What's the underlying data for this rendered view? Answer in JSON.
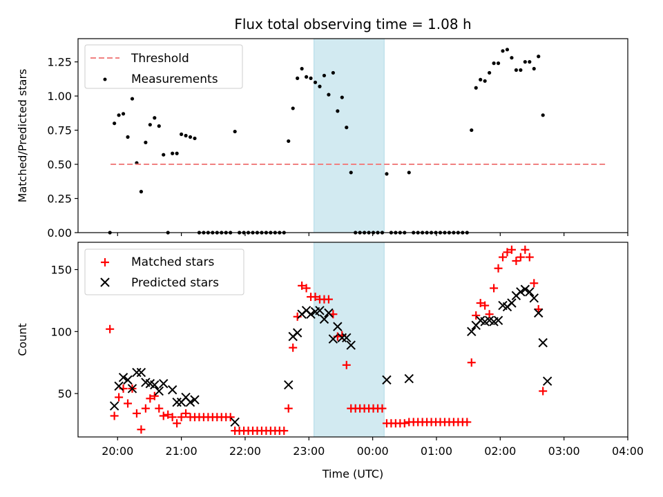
{
  "title": "Flux total observing time = 1.08 h",
  "xlabel": "Time (UTC)",
  "xticks": [
    {
      "h": 0,
      "label": "20:00"
    },
    {
      "h": 1,
      "label": "21:00"
    },
    {
      "h": 2,
      "label": "22:00"
    },
    {
      "h": 3,
      "label": "23:00"
    },
    {
      "h": 4,
      "label": "00:00"
    },
    {
      "h": 5,
      "label": "01:00"
    },
    {
      "h": 6,
      "label": "02:00"
    },
    {
      "h": 7,
      "label": "03:00"
    },
    {
      "h": 8,
      "label": "04:00"
    }
  ],
  "xlim": [
    -0.62,
    8.0
  ],
  "highlight_span": [
    3.08,
    4.18
  ],
  "colors": {
    "threshold": "#f08080",
    "measurements": "#000000",
    "matched": "#ff0000",
    "predicted": "#000000",
    "span": "#add8e6"
  },
  "chart_data": [
    {
      "type": "scatter",
      "ylabel": "Matched/Predicted stars",
      "ylim": [
        0,
        1.42
      ],
      "yticks": [
        {
          "v": 0.0,
          "label": "0.00"
        },
        {
          "v": 0.25,
          "label": "0.25"
        },
        {
          "v": 0.5,
          "label": "0.50"
        },
        {
          "v": 0.75,
          "label": "0.75"
        },
        {
          "v": 1.0,
          "label": "1.00"
        },
        {
          "v": 1.25,
          "label": "1.25"
        }
      ],
      "legend": {
        "placement": "upper-left",
        "threshold_label": "Threshold",
        "measurements_label": "Measurements"
      },
      "threshold": {
        "value": 0.5,
        "x_range": [
          -0.11,
          7.65
        ]
      },
      "series": [
        {
          "name": "Measurements",
          "points": [
            [
              -0.12,
              0.0
            ],
            [
              -0.05,
              0.8
            ],
            [
              0.02,
              0.86
            ],
            [
              0.09,
              0.87
            ],
            [
              0.16,
              0.7
            ],
            [
              0.23,
              0.98
            ],
            [
              0.3,
              0.51
            ],
            [
              0.37,
              0.3
            ],
            [
              0.44,
              0.66
            ],
            [
              0.51,
              0.79
            ],
            [
              0.58,
              0.84
            ],
            [
              0.65,
              0.78
            ],
            [
              0.72,
              0.57
            ],
            [
              0.79,
              0.0
            ],
            [
              0.86,
              0.58
            ],
            [
              0.93,
              0.58
            ],
            [
              1.0,
              0.72
            ],
            [
              1.07,
              0.71
            ],
            [
              1.14,
              0.7
            ],
            [
              1.21,
              0.69
            ],
            [
              1.28,
              0.0
            ],
            [
              1.35,
              0.0
            ],
            [
              1.42,
              0.0
            ],
            [
              1.49,
              0.0
            ],
            [
              1.56,
              0.0
            ],
            [
              1.63,
              0.0
            ],
            [
              1.7,
              0.0
            ],
            [
              1.77,
              0.0
            ],
            [
              1.84,
              0.74
            ],
            [
              1.91,
              0.0
            ],
            [
              1.98,
              0.0
            ],
            [
              2.05,
              0.0
            ],
            [
              2.12,
              0.0
            ],
            [
              2.19,
              0.0
            ],
            [
              2.26,
              0.0
            ],
            [
              2.33,
              0.0
            ],
            [
              2.4,
              0.0
            ],
            [
              2.47,
              0.0
            ],
            [
              2.54,
              0.0
            ],
            [
              2.61,
              0.0
            ],
            [
              2.68,
              0.67
            ],
            [
              2.75,
              0.91
            ],
            [
              2.82,
              1.13
            ],
            [
              2.89,
              1.2
            ],
            [
              2.96,
              1.14
            ],
            [
              3.03,
              1.13
            ],
            [
              3.1,
              1.1
            ],
            [
              3.17,
              1.07
            ],
            [
              3.24,
              1.15
            ],
            [
              3.31,
              1.01
            ],
            [
              3.38,
              1.17
            ],
            [
              3.45,
              0.89
            ],
            [
              3.52,
              0.99
            ],
            [
              3.59,
              0.77
            ],
            [
              3.66,
              0.44
            ],
            [
              3.73,
              0.0
            ],
            [
              3.8,
              0.0
            ],
            [
              3.87,
              0.0
            ],
            [
              3.94,
              0.0
            ],
            [
              4.01,
              0.0
            ],
            [
              4.08,
              0.0
            ],
            [
              4.15,
              0.0
            ],
            [
              4.22,
              0.43
            ],
            [
              4.29,
              0.0
            ],
            [
              4.36,
              0.0
            ],
            [
              4.43,
              0.0
            ],
            [
              4.5,
              0.0
            ],
            [
              4.57,
              0.44
            ],
            [
              4.64,
              0.0
            ],
            [
              4.71,
              0.0
            ],
            [
              4.78,
              0.0
            ],
            [
              4.85,
              0.0
            ],
            [
              4.92,
              0.0
            ],
            [
              4.99,
              0.0
            ],
            [
              5.06,
              0.0
            ],
            [
              5.13,
              0.0
            ],
            [
              5.2,
              0.0
            ],
            [
              5.27,
              0.0
            ],
            [
              5.34,
              0.0
            ],
            [
              5.41,
              0.0
            ],
            [
              5.48,
              0.0
            ],
            [
              5.55,
              0.75
            ],
            [
              5.62,
              1.06
            ],
            [
              5.69,
              1.12
            ],
            [
              5.76,
              1.11
            ],
            [
              5.83,
              1.17
            ],
            [
              5.9,
              1.24
            ],
            [
              5.97,
              1.24
            ],
            [
              6.04,
              1.33
            ],
            [
              6.11,
              1.34
            ],
            [
              6.18,
              1.28
            ],
            [
              6.25,
              1.19
            ],
            [
              6.32,
              1.19
            ],
            [
              6.39,
              1.25
            ],
            [
              6.46,
              1.25
            ],
            [
              6.53,
              1.2
            ],
            [
              6.6,
              1.29
            ],
            [
              6.67,
              0.86
            ]
          ]
        }
      ]
    },
    {
      "type": "scatter",
      "ylabel": "Count",
      "ylim": [
        15,
        172
      ],
      "yticks": [
        {
          "v": 50,
          "label": "50"
        },
        {
          "v": 100,
          "label": "100"
        },
        {
          "v": 150,
          "label": "150"
        }
      ],
      "legend": {
        "placement": "upper-left",
        "matched_label": "Matched stars",
        "predicted_label": "Predicted stars"
      },
      "series": [
        {
          "name": "Matched stars",
          "marker": "+",
          "points": [
            [
              -0.12,
              102
            ],
            [
              -0.05,
              32
            ],
            [
              0.02,
              47
            ],
            [
              0.09,
              54
            ],
            [
              0.16,
              42
            ],
            [
              0.23,
              54
            ],
            [
              0.3,
              34
            ],
            [
              0.37,
              21
            ],
            [
              0.44,
              38
            ],
            [
              0.51,
              46
            ],
            [
              0.58,
              48
            ],
            [
              0.65,
              38
            ],
            [
              0.72,
              32
            ],
            [
              0.79,
              33
            ],
            [
              0.86,
              31
            ],
            [
              0.93,
              26
            ],
            [
              1.0,
              31
            ],
            [
              1.07,
              34
            ],
            [
              1.14,
              31
            ],
            [
              1.21,
              31
            ],
            [
              1.28,
              31
            ],
            [
              1.35,
              31
            ],
            [
              1.42,
              31
            ],
            [
              1.49,
              31
            ],
            [
              1.56,
              31
            ],
            [
              1.63,
              31
            ],
            [
              1.7,
              31
            ],
            [
              1.77,
              31
            ],
            [
              1.84,
              20
            ],
            [
              1.91,
              20
            ],
            [
              1.98,
              20
            ],
            [
              2.05,
              20
            ],
            [
              2.12,
              20
            ],
            [
              2.19,
              20
            ],
            [
              2.26,
              20
            ],
            [
              2.33,
              20
            ],
            [
              2.4,
              20
            ],
            [
              2.47,
              20
            ],
            [
              2.54,
              20
            ],
            [
              2.61,
              20
            ],
            [
              2.68,
              38
            ],
            [
              2.75,
              87
            ],
            [
              2.82,
              112
            ],
            [
              2.89,
              137
            ],
            [
              2.96,
              135
            ],
            [
              3.03,
              128
            ],
            [
              3.1,
              128
            ],
            [
              3.17,
              126
            ],
            [
              3.24,
              126
            ],
            [
              3.31,
              126
            ],
            [
              3.38,
              114
            ],
            [
              3.45,
              96
            ],
            [
              3.52,
              97
            ],
            [
              3.59,
              73
            ],
            [
              3.66,
              38
            ],
            [
              3.73,
              38
            ],
            [
              3.8,
              38
            ],
            [
              3.87,
              38
            ],
            [
              3.94,
              38
            ],
            [
              4.01,
              38
            ],
            [
              4.08,
              38
            ],
            [
              4.15,
              38
            ],
            [
              4.22,
              26
            ],
            [
              4.29,
              26
            ],
            [
              4.36,
              26
            ],
            [
              4.43,
              26
            ],
            [
              4.5,
              26
            ],
            [
              4.57,
              27
            ],
            [
              4.64,
              27
            ],
            [
              4.71,
              27
            ],
            [
              4.78,
              27
            ],
            [
              4.85,
              27
            ],
            [
              4.92,
              27
            ],
            [
              4.99,
              27
            ],
            [
              5.06,
              27
            ],
            [
              5.13,
              27
            ],
            [
              5.2,
              27
            ],
            [
              5.27,
              27
            ],
            [
              5.34,
              27
            ],
            [
              5.41,
              27
            ],
            [
              5.48,
              27
            ],
            [
              5.55,
              75
            ],
            [
              5.62,
              113
            ],
            [
              5.69,
              123
            ],
            [
              5.76,
              121
            ],
            [
              5.83,
              114
            ],
            [
              5.9,
              135
            ],
            [
              5.97,
              151
            ],
            [
              6.04,
              160
            ],
            [
              6.11,
              164
            ],
            [
              6.18,
              166
            ],
            [
              6.25,
              157
            ],
            [
              6.32,
              160
            ],
            [
              6.39,
              166
            ],
            [
              6.46,
              160
            ],
            [
              6.53,
              139
            ],
            [
              6.6,
              118
            ],
            [
              6.67,
              52
            ]
          ]
        },
        {
          "name": "Predicted stars",
          "marker": "x",
          "points": [
            [
              -0.05,
              40
            ],
            [
              0.02,
              56
            ],
            [
              0.09,
              63
            ],
            [
              0.16,
              61
            ],
            [
              0.23,
              54
            ],
            [
              0.3,
              67
            ],
            [
              0.37,
              67
            ],
            [
              0.44,
              59
            ],
            [
              0.51,
              58
            ],
            [
              0.58,
              57
            ],
            [
              0.65,
              52
            ],
            [
              0.72,
              58
            ],
            [
              0.86,
              53
            ],
            [
              0.93,
              43
            ],
            [
              1.0,
              43
            ],
            [
              1.07,
              47
            ],
            [
              1.14,
              43
            ],
            [
              1.21,
              45
            ],
            [
              1.84,
              27
            ],
            [
              2.68,
              57
            ],
            [
              2.75,
              96
            ],
            [
              2.82,
              99
            ],
            [
              2.89,
              114
            ],
            [
              2.96,
              117
            ],
            [
              3.03,
              114
            ],
            [
              3.1,
              116
            ],
            [
              3.17,
              117
            ],
            [
              3.24,
              110
            ],
            [
              3.31,
              115
            ],
            [
              3.38,
              94
            ],
            [
              3.45,
              104
            ],
            [
              3.52,
              95
            ],
            [
              3.59,
              95
            ],
            [
              3.66,
              89
            ],
            [
              4.22,
              61
            ],
            [
              4.57,
              62
            ],
            [
              5.55,
              100
            ],
            [
              5.62,
              105
            ],
            [
              5.69,
              109
            ],
            [
              5.76,
              108
            ],
            [
              5.83,
              109
            ],
            [
              5.9,
              108
            ],
            [
              5.97,
              109
            ],
            [
              6.04,
              121
            ],
            [
              6.11,
              120
            ],
            [
              6.18,
              123
            ],
            [
              6.25,
              129
            ],
            [
              6.32,
              132
            ],
            [
              6.39,
              134
            ],
            [
              6.46,
              132
            ],
            [
              6.53,
              127
            ],
            [
              6.6,
              115
            ],
            [
              6.67,
              91
            ],
            [
              6.74,
              60
            ]
          ]
        }
      ]
    }
  ]
}
